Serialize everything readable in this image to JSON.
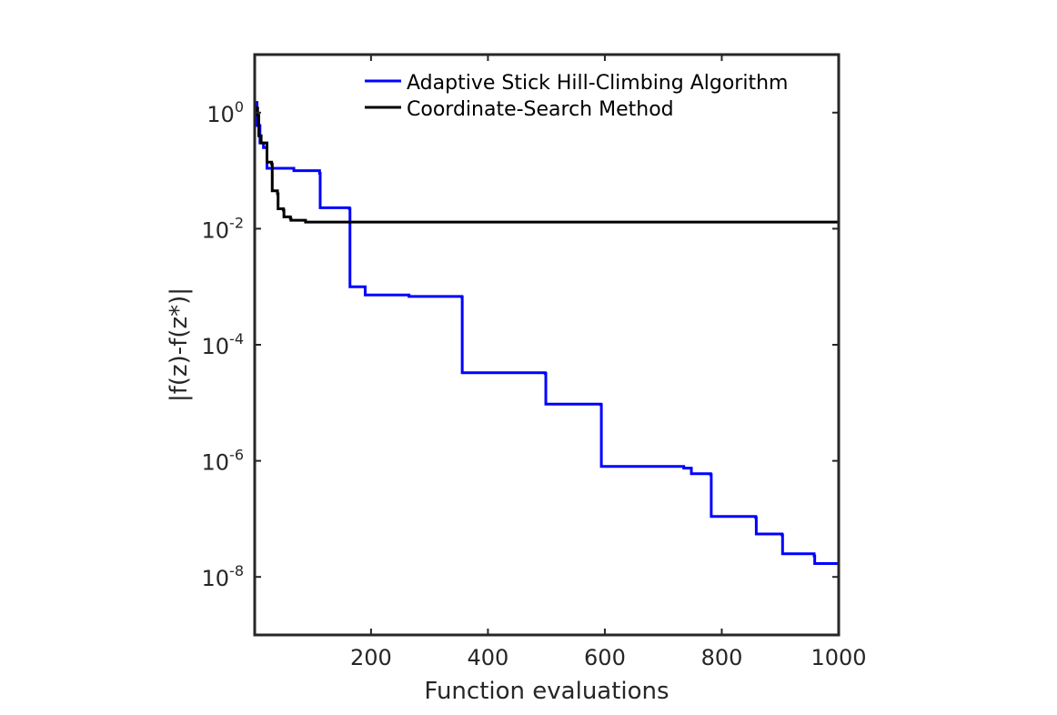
{
  "chart_data": {
    "type": "line",
    "xlabel": "Function evaluations",
    "ylabel": "|f(z)-f(z*)|",
    "xlim": [
      1,
      1000
    ],
    "ylim": [
      1e-09,
      10
    ],
    "yscale": "log",
    "xticks": [
      200,
      400,
      600,
      800,
      1000
    ],
    "xtick_labels": [
      "200",
      "400",
      "600",
      "800",
      "1000"
    ],
    "yticks": [
      1e-08,
      1e-06,
      0.0001,
      0.01,
      1
    ],
    "ytick_labels": [
      {
        "base": "10",
        "exp": "-8"
      },
      {
        "base": "10",
        "exp": "-6"
      },
      {
        "base": "10",
        "exp": "-4"
      },
      {
        "base": "10",
        "exp": "-2"
      },
      {
        "base": "10",
        "exp": "0"
      }
    ],
    "grid": false,
    "legend_position": "top-right",
    "series": [
      {
        "name": "Adaptive Stick Hill-Climbing Algorithm",
        "color": "#0000ff",
        "step": true,
        "points": [
          [
            1,
            1.5
          ],
          [
            5,
            0.6
          ],
          [
            10,
            0.3
          ],
          [
            16,
            0.25
          ],
          [
            22,
            0.11
          ],
          [
            68,
            0.1
          ],
          [
            112,
            0.09
          ],
          [
            113,
            0.023
          ],
          [
            163,
            0.022
          ],
          [
            164,
            0.001
          ],
          [
            190,
            0.00072
          ],
          [
            265,
            0.00068
          ],
          [
            355,
            0.00067
          ],
          [
            356,
            3.3e-05
          ],
          [
            498,
            3.2e-05
          ],
          [
            499,
            9.5e-06
          ],
          [
            593,
            9.3e-06
          ],
          [
            594,
            8e-07
          ],
          [
            735,
            7.5e-07
          ],
          [
            748,
            6e-07
          ],
          [
            781,
            5.8e-07
          ],
          [
            782,
            1.1e-07
          ],
          [
            858,
            1.05e-07
          ],
          [
            859,
            5.5e-08
          ],
          [
            903,
            5.3e-08
          ],
          [
            904,
            2.5e-08
          ],
          [
            958,
            2.3e-08
          ],
          [
            959,
            1.7e-08
          ],
          [
            1000,
            1.7e-08
          ]
        ]
      },
      {
        "name": "Coordinate-Search Method",
        "color": "#000000",
        "step": true,
        "points": [
          [
            1,
            1.2
          ],
          [
            6,
            0.9
          ],
          [
            8,
            0.4
          ],
          [
            12,
            0.3
          ],
          [
            18,
            0.3
          ],
          [
            22,
            0.14
          ],
          [
            30,
            0.13
          ],
          [
            31,
            0.045
          ],
          [
            40,
            0.04
          ],
          [
            41,
            0.022
          ],
          [
            50,
            0.021
          ],
          [
            51,
            0.016
          ],
          [
            62,
            0.015
          ],
          [
            63,
            0.014
          ],
          [
            88,
            0.013
          ],
          [
            1000,
            0.013
          ]
        ]
      }
    ]
  }
}
